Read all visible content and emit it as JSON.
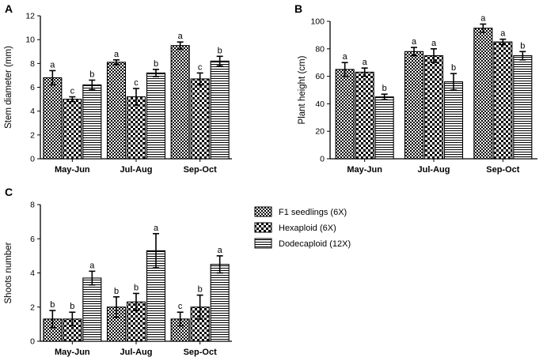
{
  "legend": {
    "entries": [
      {
        "label": "F1 seedlings (6X)",
        "pattern": "dense-check"
      },
      {
        "label": "Hexaploid (6X)",
        "pattern": "coarse-check"
      },
      {
        "label": "Dodecaploid (12X)",
        "pattern": "horizontal-lines"
      }
    ]
  },
  "colors": {
    "ink": "#000000",
    "background": "#ffffff"
  },
  "chart_data": [
    {
      "panel": "A",
      "type": "bar",
      "ylabel": "Stem diameter (mm)",
      "xlabel": "",
      "ylim": [
        0,
        12
      ],
      "yticks": [
        0,
        2,
        4,
        6,
        8,
        10,
        12
      ],
      "categories": [
        "May-Jun",
        "Jul-Aug",
        "Sep-Oct"
      ],
      "series": [
        {
          "name": "F1 seedlings (6X)",
          "values": [
            6.8,
            8.1,
            9.5
          ],
          "errors": [
            0.6,
            0.2,
            0.3
          ],
          "letters": [
            "a",
            "a",
            "a"
          ]
        },
        {
          "name": "Hexaploid (6X)",
          "values": [
            5.0,
            5.2,
            6.7
          ],
          "errors": [
            0.2,
            0.7,
            0.5
          ],
          "letters": [
            "c",
            "c",
            "c"
          ]
        },
        {
          "name": "Dodecaploid (12X)",
          "values": [
            6.2,
            7.2,
            8.2
          ],
          "errors": [
            0.4,
            0.3,
            0.4
          ],
          "letters": [
            "b",
            "b",
            "b"
          ]
        }
      ]
    },
    {
      "panel": "B",
      "type": "bar",
      "ylabel": "Plant height (cm)",
      "xlabel": "",
      "ylim": [
        0,
        100
      ],
      "yticks": [
        0,
        20,
        40,
        60,
        80,
        100
      ],
      "categories": [
        "May-Jun",
        "Jul-Aug",
        "Sep-Oct"
      ],
      "series": [
        {
          "name": "F1 seedlings (6X)",
          "values": [
            65,
            78,
            95
          ],
          "errors": [
            5,
            3,
            3
          ],
          "letters": [
            "a",
            "a",
            "a"
          ]
        },
        {
          "name": "Hexaploid (6X)",
          "values": [
            63,
            75,
            85
          ],
          "errors": [
            3,
            5,
            2
          ],
          "letters": [
            "a",
            "a",
            "a"
          ]
        },
        {
          "name": "Dodecaploid (12X)",
          "values": [
            45,
            56,
            75
          ],
          "errors": [
            2,
            6,
            3
          ],
          "letters": [
            "b",
            "b",
            "b"
          ]
        }
      ]
    },
    {
      "panel": "C",
      "type": "bar",
      "ylabel": "Shoots number",
      "xlabel": "",
      "ylim": [
        0,
        8
      ],
      "yticks": [
        0,
        2,
        4,
        6,
        8
      ],
      "categories": [
        "May-Jun",
        "Jul-Aug",
        "Sep-Oct"
      ],
      "series": [
        {
          "name": "F1 seedlings (6X)",
          "values": [
            1.3,
            2.0,
            1.3
          ],
          "errors": [
            0.5,
            0.6,
            0.4
          ],
          "letters": [
            "b",
            "b",
            "c"
          ]
        },
        {
          "name": "Hexaploid (6X)",
          "values": [
            1.3,
            2.3,
            2.0
          ],
          "errors": [
            0.4,
            0.5,
            0.7
          ],
          "letters": [
            "b",
            "b",
            "b"
          ]
        },
        {
          "name": "Dodecaploid (12X)",
          "values": [
            3.7,
            5.3,
            4.5
          ],
          "errors": [
            0.4,
            1.0,
            0.5
          ],
          "letters": [
            "a",
            "a",
            "a"
          ]
        }
      ]
    }
  ]
}
